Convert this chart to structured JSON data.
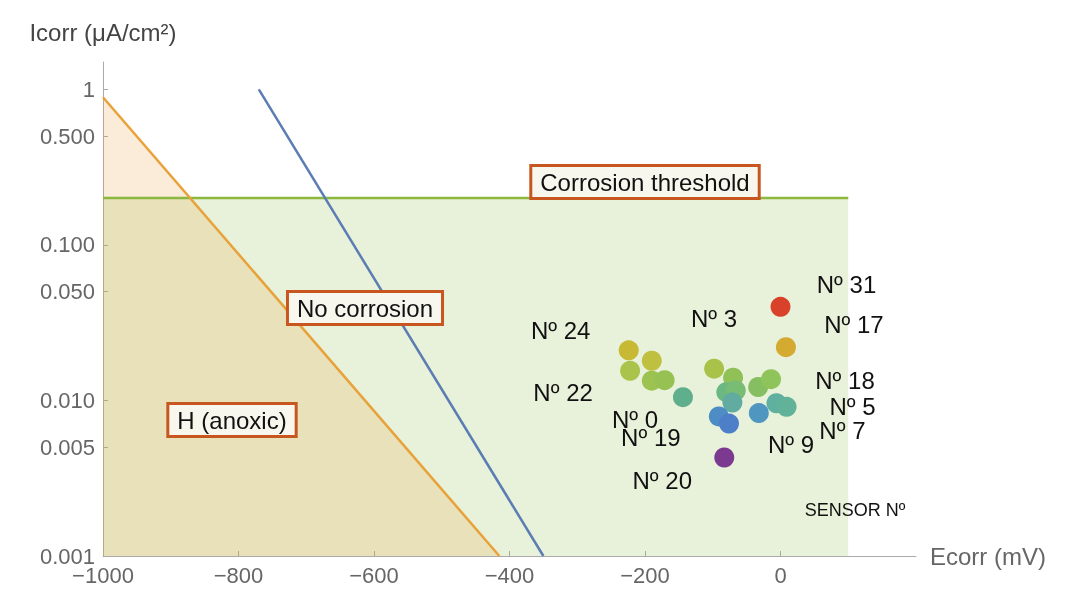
{
  "chart_data": {
    "type": "scatter",
    "xlabel": "Ecorr (mV)",
    "ylabel": "Icorr (μA/cm²)",
    "xlim": [
      -1000,
      200
    ],
    "xticks": [
      -1000,
      -800,
      -600,
      -400,
      -200,
      0
    ],
    "ylim": [
      0.001,
      1.5
    ],
    "log": "y",
    "yticks": [
      {
        "value": 0.001,
        "label": "0.001"
      },
      {
        "value": 0.005,
        "label": "0.005"
      },
      {
        "value": 0.01,
        "label": "0.010"
      },
      {
        "value": 0.05,
        "label": "0.050"
      },
      {
        "value": 0.1,
        "label": "0.100"
      },
      {
        "value": 0.5,
        "label": "0.500"
      },
      {
        "value": 1,
        "label": "1"
      }
    ],
    "grid": false,
    "series": [
      {
        "type": "area",
        "color": "#8db83f",
        "x": [
          -1000,
          100
        ],
        "values": [
          0.2,
          0.2
        ]
      },
      {
        "type": "area",
        "color": "#e8a23a",
        "x": [
          -1000,
          -415
        ],
        "values": [
          0.89,
          0.001
        ]
      },
      {
        "type": "line",
        "color": "#5b7db3",
        "x": [
          -770,
          -350
        ],
        "values": [
          1,
          0.001
        ]
      },
      {
        "x": [
          0,
          8,
          -224,
          -190,
          -222,
          -190,
          -171,
          -144,
          -98,
          -70,
          -80,
          -66,
          -71,
          -91,
          -76,
          -33,
          -14,
          -32,
          -6,
          9,
          -83
        ],
        "values": [
          0.04,
          0.022,
          0.021,
          0.018,
          0.0155,
          0.0134,
          0.0135,
          0.0105,
          0.016,
          0.014,
          0.0113,
          0.0116,
          0.0097,
          0.0079,
          0.0071,
          0.0122,
          0.0137,
          0.0083,
          0.0096,
          0.0091,
          0.0043
        ],
        "colors": [
          "#d9412b",
          "#d4aa30",
          "#c8b935",
          "#bfbf40",
          "#a9c34b",
          "#9cc350",
          "#97c253",
          "#5fae8c",
          "#a8c24a",
          "#8fc157",
          "#6cb883",
          "#79bc74",
          "#62aba0",
          "#4d8cc4",
          "#4d7fc9",
          "#86bf62",
          "#8fc45a",
          "#4f96c0",
          "#5fb0a0",
          "#62b29a",
          "#7b3a8f"
        ],
        "value_labels": [
          "Nº 31",
          "Nº 17",
          "Nº 24",
          null,
          "Nº 22",
          null,
          null,
          "Nº 0",
          "Nº 3",
          null,
          null,
          null,
          null,
          "Nº 19",
          "Nº 9",
          null,
          "Nº 18",
          null,
          "Nº 7",
          "Nº 5",
          "Nº 20"
        ]
      }
    ],
    "annotations": [
      "Corrosion threshold",
      "No corrosion",
      "H (anoxic)",
      "SENSOR Nº"
    ]
  }
}
